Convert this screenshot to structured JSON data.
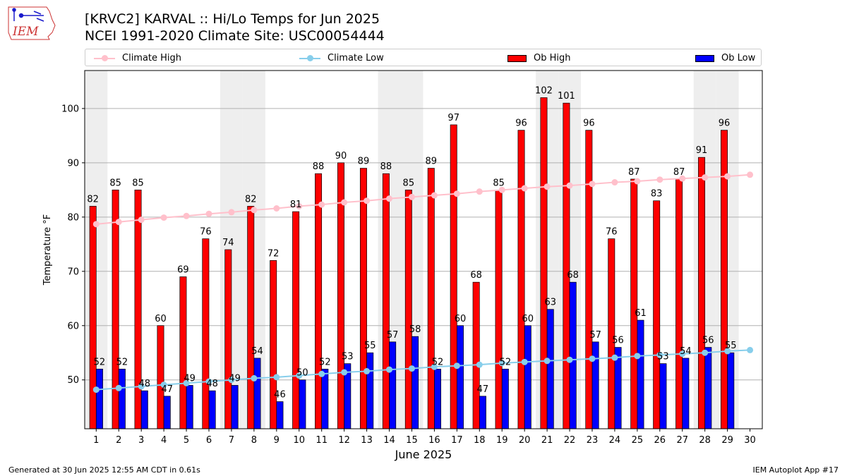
{
  "header": {
    "title_line1": "[KRVC2] KARVAL :: Hi/Lo Temps for Jun 2025",
    "title_line2": "NCEI 1991-2020 Climate Site: USC00054444",
    "logo_text": "IEM"
  },
  "legend": {
    "climate_high": "Climate High",
    "climate_low": "Climate Low",
    "ob_high": "Ob High",
    "ob_low": "Ob Low"
  },
  "footer": {
    "generated": "Generated at 30 Jun 2025 12:55 AM CDT in 0.61s",
    "app": "IEM Autoplot App #17"
  },
  "colors": {
    "ob_high": "#ff0000",
    "ob_low": "#0000ff",
    "climate_high": "#ffc0cb",
    "climate_low": "#87ceeb",
    "weekend_band": "#eeeeee",
    "grid": "#b0b0b0"
  },
  "chart_data": {
    "type": "bar",
    "xlabel": "June 2025",
    "ylabel": "Temperature °F",
    "ylim": [
      41,
      107
    ],
    "yticks": [
      50,
      60,
      70,
      80,
      90,
      100
    ],
    "grid": "horizontal",
    "legend_position": "top",
    "categories": [
      1,
      2,
      3,
      4,
      5,
      6,
      7,
      8,
      9,
      10,
      11,
      12,
      13,
      14,
      15,
      16,
      17,
      18,
      19,
      20,
      21,
      22,
      23,
      24,
      25,
      26,
      27,
      28,
      29,
      30
    ],
    "weekend_days": [
      1,
      7,
      8,
      14,
      15,
      21,
      22,
      28,
      29
    ],
    "series": [
      {
        "name": "Ob High",
        "kind": "bar",
        "values": [
          82,
          85,
          85,
          60,
          69,
          76,
          74,
          82,
          72,
          81,
          88,
          90,
          89,
          88,
          85,
          89,
          97,
          68,
          85,
          96,
          102,
          101,
          96,
          76,
          87,
          83,
          87,
          91,
          96,
          null
        ]
      },
      {
        "name": "Ob Low",
        "kind": "bar",
        "values": [
          52,
          52,
          48,
          47,
          49,
          48,
          49,
          54,
          46,
          50,
          52,
          53,
          55,
          57,
          58,
          52,
          60,
          47,
          52,
          60,
          63,
          68,
          57,
          56,
          61,
          53,
          54,
          56,
          55,
          null
        ]
      },
      {
        "name": "Climate High",
        "kind": "line",
        "values": [
          78.7,
          79.1,
          79.5,
          79.9,
          80.2,
          80.6,
          80.9,
          81.3,
          81.6,
          82.0,
          82.3,
          82.7,
          83.0,
          83.4,
          83.7,
          84.0,
          84.3,
          84.7,
          85.0,
          85.3,
          85.6,
          85.8,
          86.1,
          86.4,
          86.6,
          86.9,
          87.1,
          87.3,
          87.5,
          87.8
        ]
      },
      {
        "name": "Climate Low",
        "kind": "line",
        "values": [
          48.2,
          48.5,
          48.8,
          49.1,
          49.4,
          49.7,
          50.0,
          50.3,
          50.5,
          50.8,
          51.1,
          51.4,
          51.6,
          51.9,
          52.1,
          52.4,
          52.6,
          52.8,
          53.1,
          53.3,
          53.5,
          53.7,
          53.9,
          54.1,
          54.4,
          54.6,
          54.8,
          55.0,
          55.3,
          55.5
        ]
      }
    ]
  }
}
